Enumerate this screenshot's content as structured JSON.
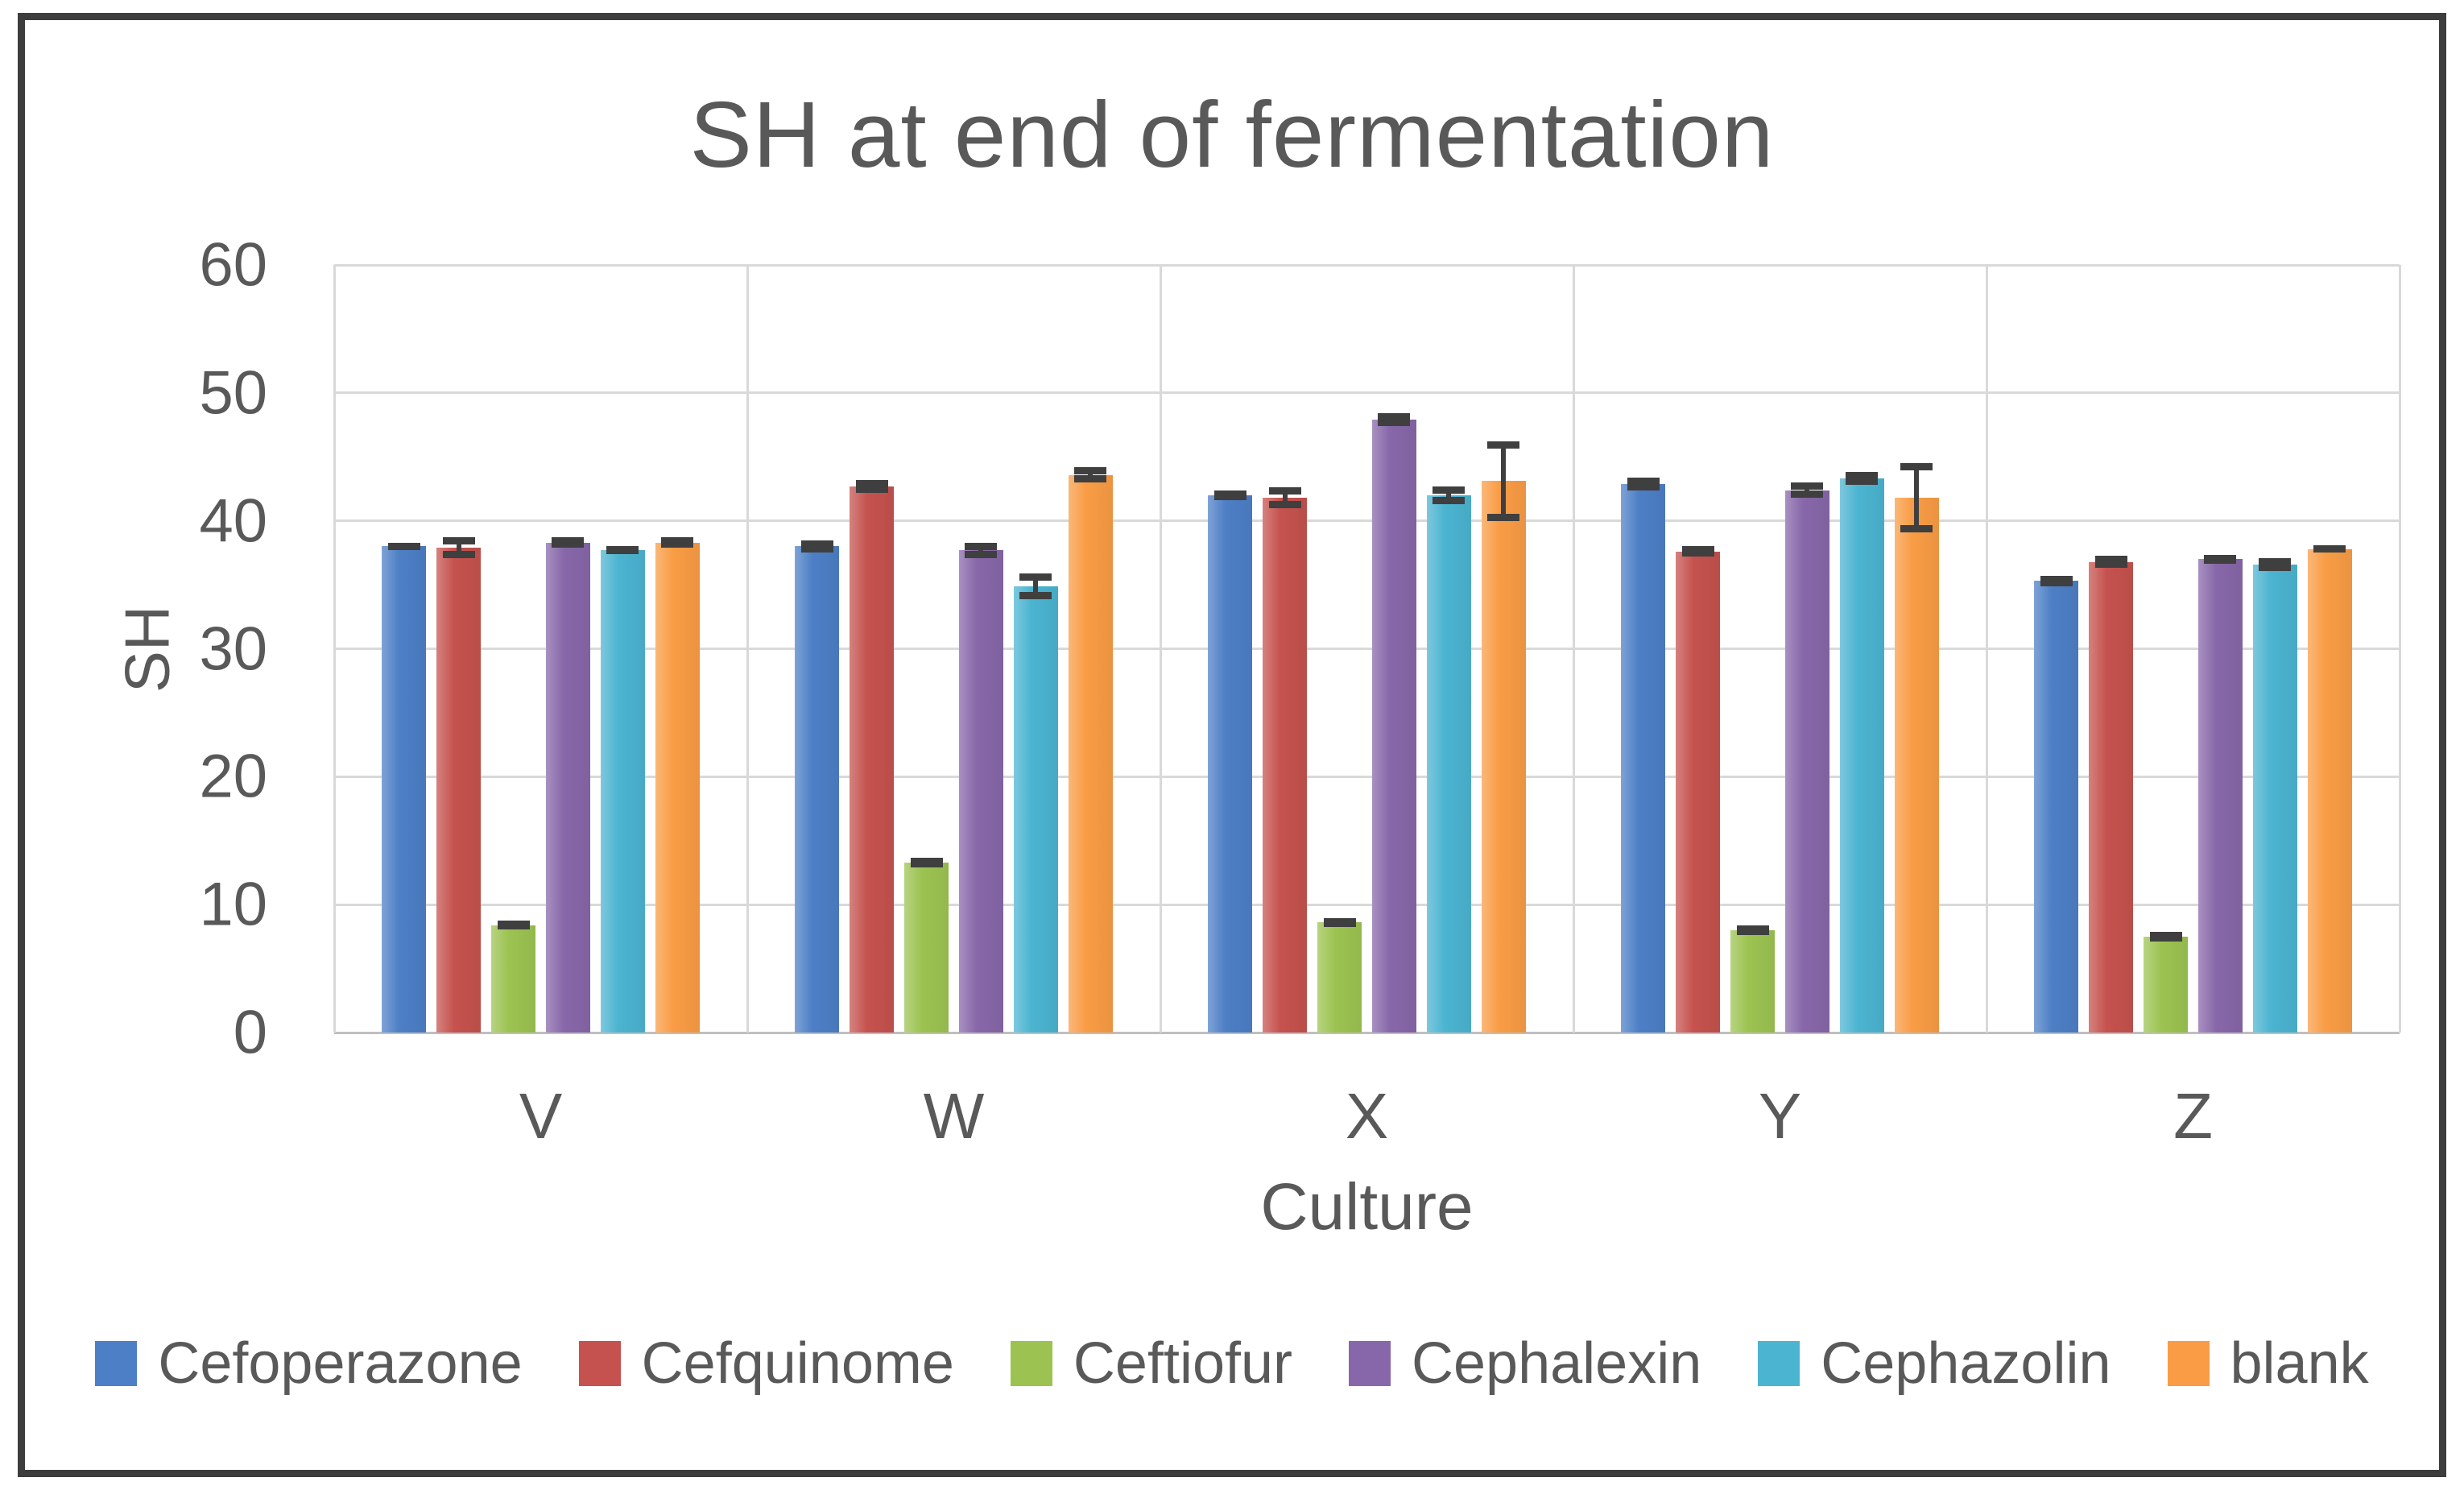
{
  "chart_data": {
    "type": "bar",
    "title": "SH at end of fermentation",
    "xlabel": "Culture",
    "ylabel": "SH",
    "ylim": [
      0,
      60
    ],
    "yticks": [
      0,
      10,
      20,
      30,
      40,
      50,
      60
    ],
    "grid": true,
    "legend_position": "bottom",
    "categories": [
      "V",
      "W",
      "X",
      "Y",
      "Z"
    ],
    "series": [
      {
        "name": "Cefoperazone",
        "color": "#4d7fc6",
        "values": [
          38.0,
          38.0,
          42.0,
          42.9,
          35.3
        ],
        "errors": [
          0.3,
          0.5,
          0.4,
          0.5,
          0.4
        ]
      },
      {
        "name": "Cefquinome",
        "color": "#c5524e",
        "values": [
          37.9,
          42.7,
          41.8,
          37.6,
          36.8
        ],
        "errors": [
          0.8,
          0.5,
          0.8,
          0.4,
          0.5
        ]
      },
      {
        "name": "Ceftiofur",
        "color": "#9cc351",
        "values": [
          8.4,
          13.3,
          8.6,
          8.0,
          7.5
        ],
        "errors": [
          0.2,
          0.2,
          0.2,
          0.2,
          0.2
        ]
      },
      {
        "name": "Cephalexin",
        "color": "#8767a9",
        "values": [
          38.3,
          37.7,
          47.9,
          42.4,
          37.0
        ],
        "errors": [
          0.4,
          0.6,
          0.5,
          0.6,
          0.2
        ]
      },
      {
        "name": "Cephazolin",
        "color": "#4bb4d1",
        "values": [
          37.7,
          34.9,
          42.0,
          43.3,
          36.6
        ],
        "errors": [
          0.3,
          1.0,
          0.7,
          0.5,
          0.5
        ]
      },
      {
        "name": "blank",
        "color": "#f99c45",
        "values": [
          38.3,
          43.6,
          43.1,
          41.8,
          37.8
        ],
        "errors": [
          0.4,
          0.6,
          3.1,
          2.7,
          0.3
        ]
      }
    ]
  },
  "colors": {
    "text": "#595959",
    "gridline": "#d9d9d9",
    "axis_line": "#bfbfbf",
    "error_bar": "#3f3f3f",
    "figure_border": "#3d3d3d",
    "background": "#ffffff"
  }
}
